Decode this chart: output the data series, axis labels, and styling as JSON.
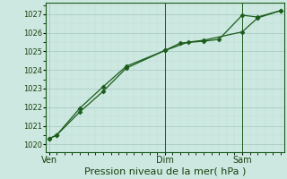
{
  "background_color": "#cce8e0",
  "grid_major_color": "#aaccc4",
  "grid_minor_color": "#bbddd8",
  "line_color": "#1a5c1a",
  "marker_color": "#1a5c1a",
  "title": "Pression niveau de la mer( hPa )",
  "title_fontsize": 8,
  "tick_color": "#1a4010",
  "tick_fontsize": 6,
  "ylim": [
    1019.6,
    1027.6
  ],
  "yticks": [
    1020,
    1021,
    1022,
    1023,
    1024,
    1025,
    1026,
    1027
  ],
  "xlim": [
    -0.2,
    15.2
  ],
  "xtick_labels": [
    "Ven",
    "Dim",
    "Sam"
  ],
  "xtick_positions": [
    0,
    7.5,
    12.5
  ],
  "vline_positions": [
    7.5,
    12.5
  ],
  "line1_x": [
    0,
    0.5,
    2,
    3.5,
    5,
    7.5,
    8.5,
    10,
    11,
    12.5,
    13.5,
    15
  ],
  "line1_y": [
    1020.3,
    1020.5,
    1021.75,
    1022.85,
    1024.1,
    1025.05,
    1025.45,
    1025.55,
    1025.65,
    1026.95,
    1026.85,
    1027.2
  ],
  "line2_x": [
    0,
    0.5,
    2,
    3.5,
    5,
    7.5,
    9,
    10,
    12.5,
    13.5,
    15
  ],
  "line2_y": [
    1020.3,
    1020.5,
    1021.95,
    1023.1,
    1024.2,
    1025.05,
    1025.5,
    1025.6,
    1026.05,
    1026.8,
    1027.2
  ],
  "total_x_points": 15
}
